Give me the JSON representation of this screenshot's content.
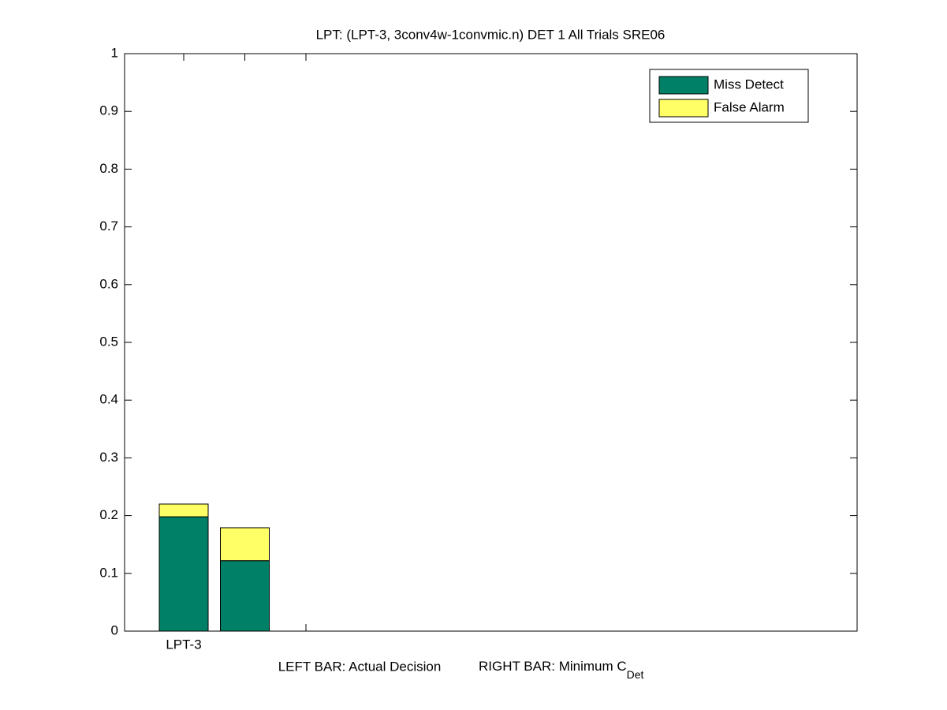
{
  "chart_data": {
    "type": "bar",
    "stacked": true,
    "title": "LPT: (LPT-3, 3conv4w-1convmic.n) DET 1 All Trials SRE06",
    "xlabel": {
      "left": "LEFT BAR: Actual Decision",
      "right": "RIGHT BAR: Minimum C",
      "right_subscript": "Det"
    },
    "categories": [
      "LPT-3",
      null
    ],
    "series": [
      {
        "name": "Miss Detect",
        "color": "#008066",
        "values": [
          0.198,
          0.122
        ]
      },
      {
        "name": "False Alarm",
        "color": "#ffff66",
        "values": [
          0.022,
          0.057
        ]
      }
    ],
    "ylim": [
      0,
      1
    ],
    "yticks": [
      0,
      0.1,
      0.2,
      0.3,
      0.4,
      0.5,
      0.6,
      0.7,
      0.8,
      0.9,
      1
    ],
    "grid": false,
    "legend": "top-right"
  }
}
